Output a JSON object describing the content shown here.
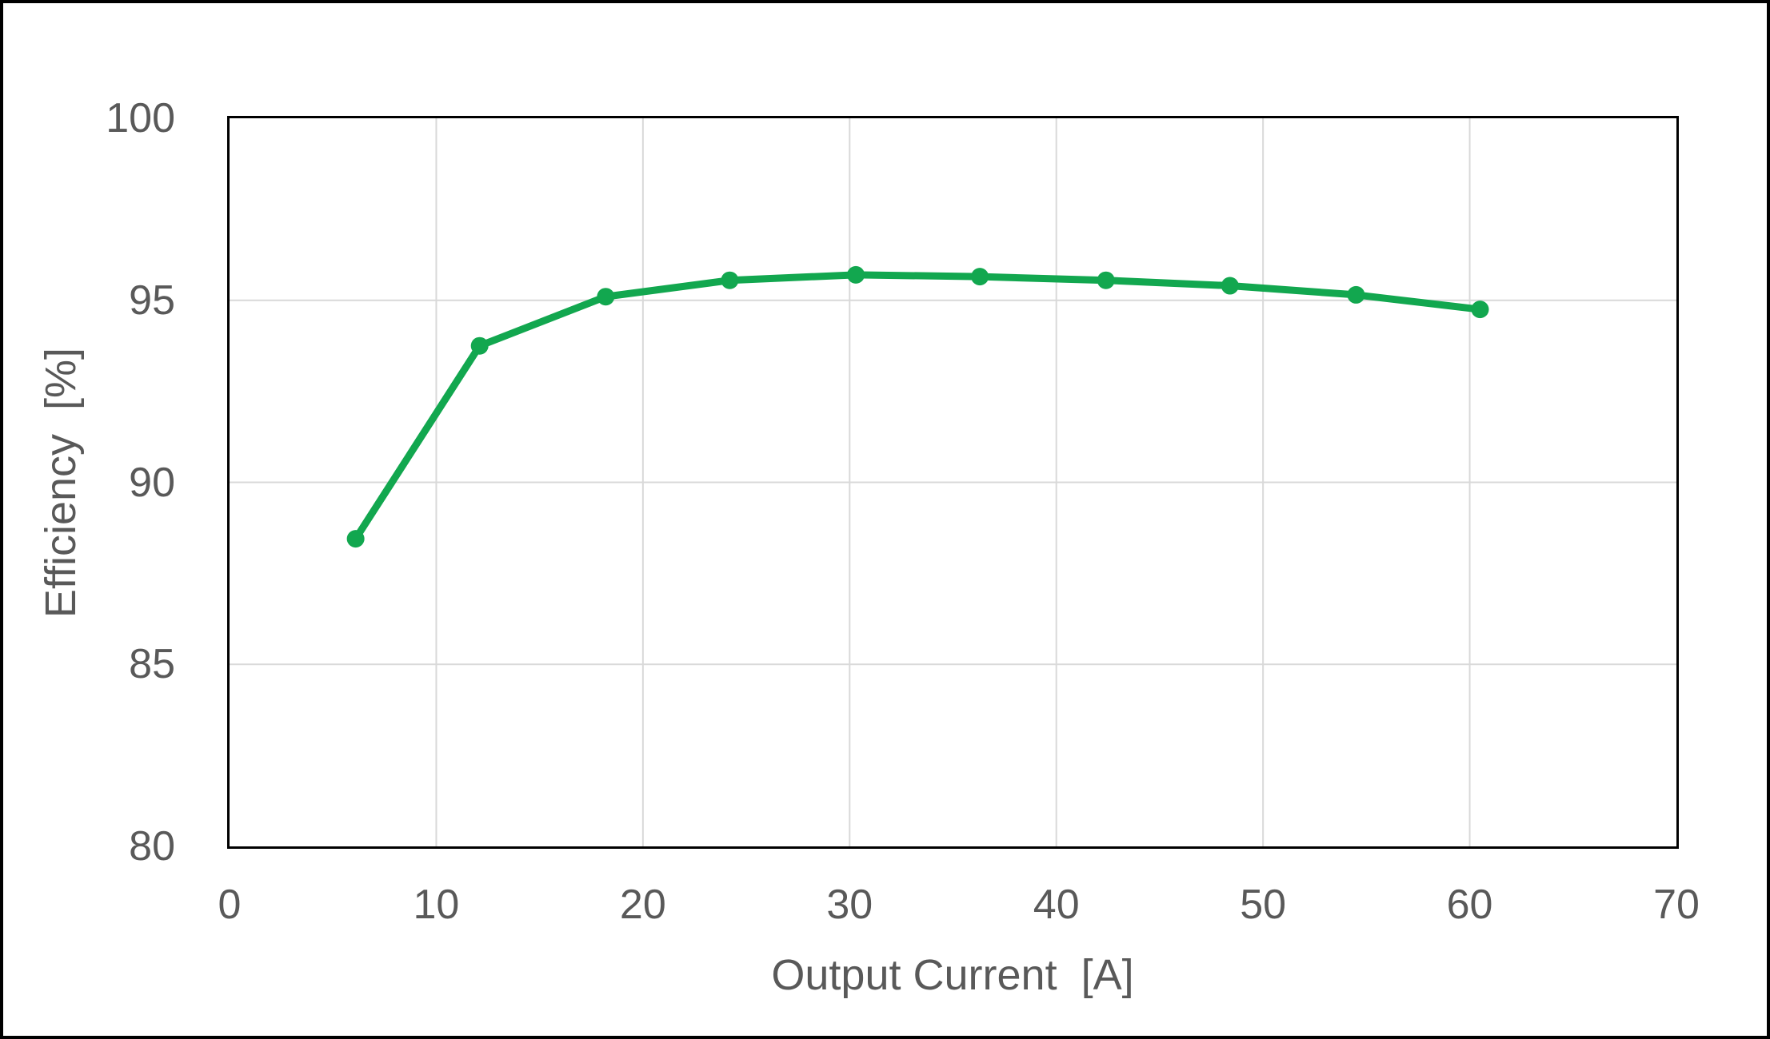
{
  "chart_data": {
    "type": "line",
    "title": "",
    "xlabel": "Output Current  [A]",
    "ylabel": "Efficiency  [%]",
    "xlim": [
      0,
      70
    ],
    "ylim": [
      80,
      100
    ],
    "x_ticks": [
      0,
      10,
      20,
      30,
      40,
      50,
      60,
      70
    ],
    "y_ticks": [
      80,
      85,
      90,
      95,
      100
    ],
    "grid": true,
    "legend_position": "none",
    "series": [
      {
        "name": "Efficiency",
        "x": [
          6.1,
          12.1,
          18.2,
          24.2,
          30.3,
          36.3,
          42.4,
          48.4,
          54.5,
          60.5
        ],
        "y": [
          88.45,
          93.75,
          95.1,
          95.55,
          95.7,
          95.65,
          95.55,
          95.4,
          95.15,
          94.75
        ],
        "color": "#12A74F",
        "marker": "circle",
        "marker_radius": 11,
        "line_width": 9
      }
    ]
  },
  "styles": {
    "background_color": "#FFFFFF",
    "outer_border_color": "#000000",
    "plot_border_color": "#000000",
    "grid_color": "#D9D9D9",
    "label_color": "#595959"
  }
}
